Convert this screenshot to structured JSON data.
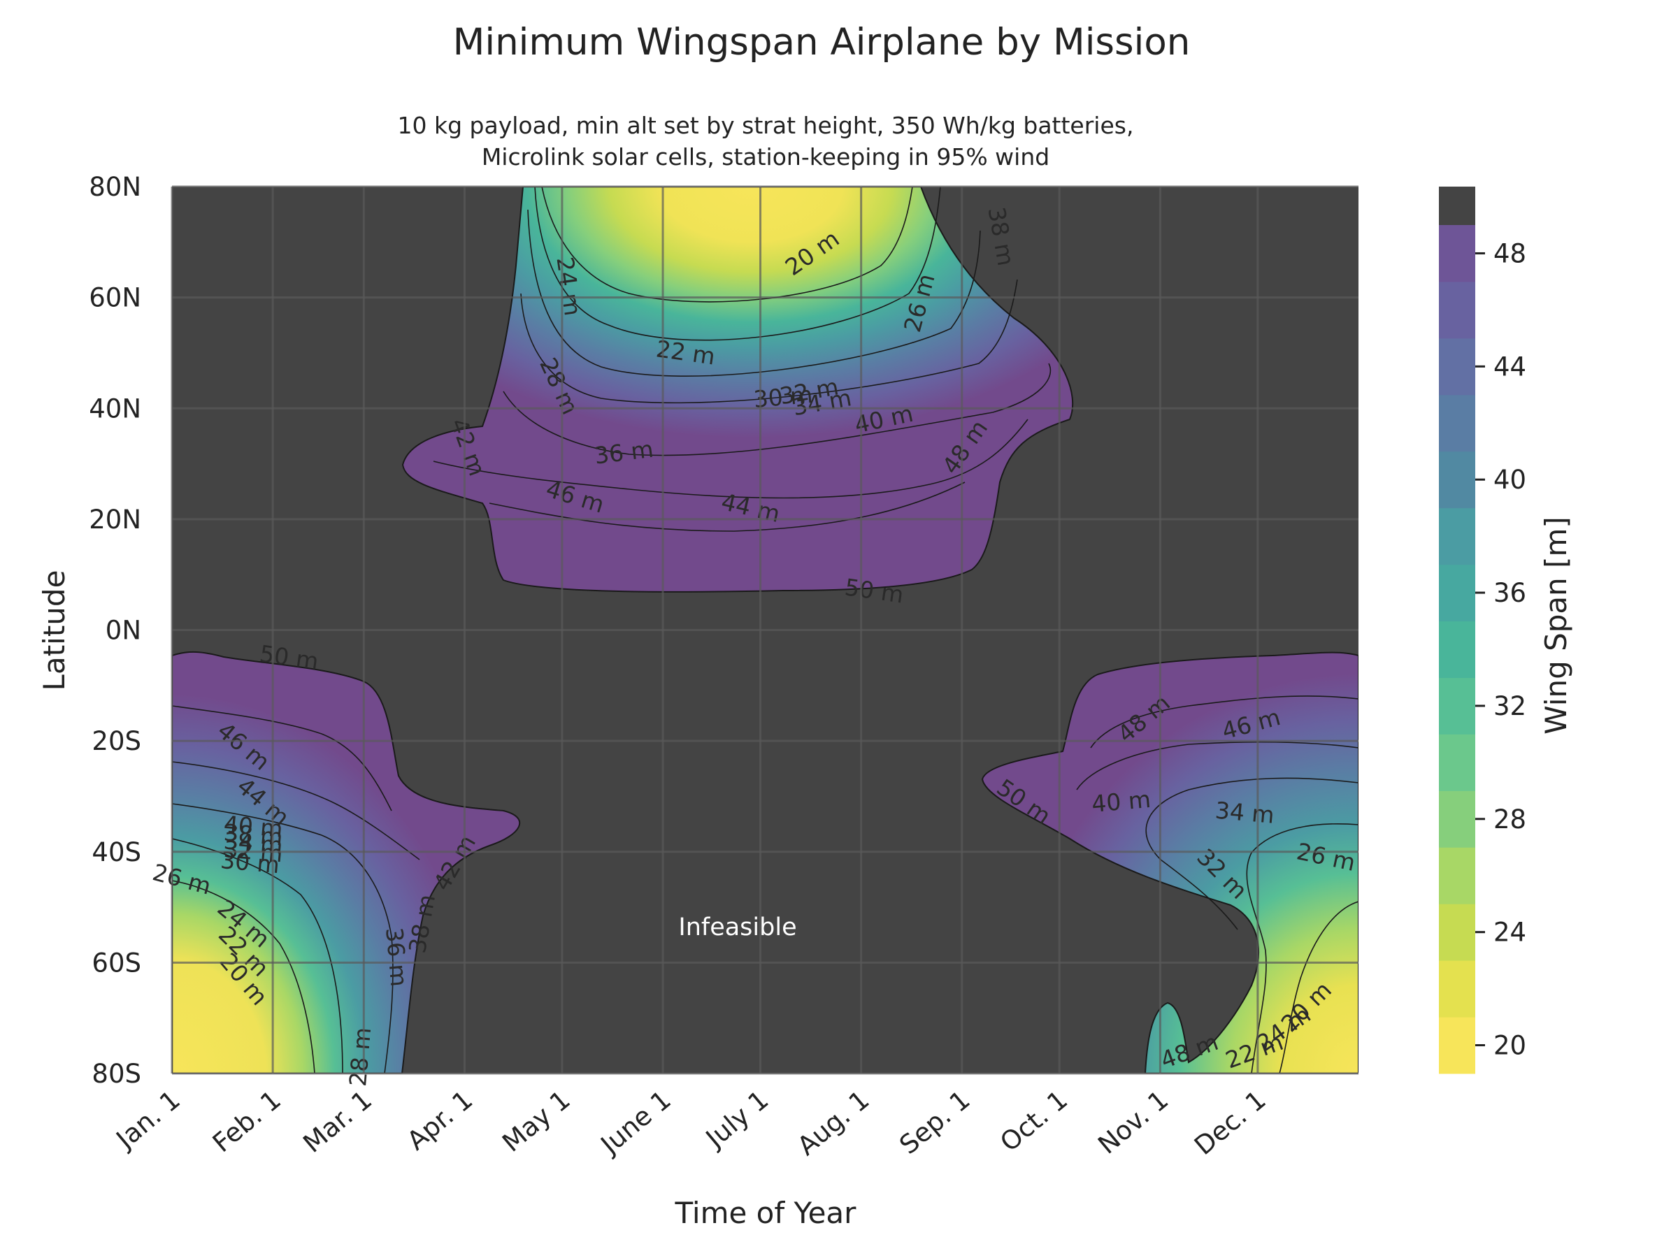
{
  "chart_data": {
    "type": "contour",
    "title": "Minimum Wingspan Airplane by Mission",
    "subtitle_lines": [
      "10 kg payload, min alt set by strat height, 350 Wh/kg batteries,",
      "Microlink solar cells, station-keeping in 95% wind"
    ],
    "xlabel": "Time of Year",
    "ylabel": "Latitude",
    "x_ticks": [
      "Jan. 1",
      "Feb. 1",
      "Mar. 1",
      "Apr. 1",
      "May 1",
      "June 1",
      "July 1",
      "Aug. 1",
      "Sep. 1",
      "Oct. 1",
      "Nov. 1",
      "Dec. 1"
    ],
    "x_tick_days": [
      0,
      31,
      59,
      90,
      120,
      151,
      181,
      212,
      243,
      273,
      304,
      334
    ],
    "xlim_days": [
      0,
      365
    ],
    "y_ticks": [
      "80N",
      "60N",
      "40N",
      "20N",
      "0N",
      "20S",
      "40S",
      "60S",
      "80S"
    ],
    "y_tick_values": [
      80,
      60,
      40,
      20,
      0,
      -20,
      -40,
      -60,
      -80
    ],
    "ylim": [
      -80,
      80
    ],
    "infeasible_label": "Infeasible",
    "infeasible_color": "#444444",
    "colorbar": {
      "label": "Wing Span [m]",
      "ticks": [
        "48",
        "44",
        "40",
        "36",
        "32",
        "28",
        "24",
        "20"
      ],
      "tick_values": [
        48,
        44,
        40,
        36,
        32,
        28,
        24,
        20
      ],
      "levels": [
        19,
        21,
        23,
        25,
        27,
        29,
        31,
        33,
        35,
        37,
        39,
        41,
        43,
        45,
        47,
        49
      ],
      "colors": [
        "#f7e55a",
        "#e4e14f",
        "#c6db52",
        "#a8d766",
        "#86cf7c",
        "#6bc88c",
        "#57bf95",
        "#49b59a",
        "#47a8a0",
        "#4b9ca3",
        "#5189a2",
        "#5a7da4",
        "#6270a4",
        "#6862a0",
        "#6e5597",
        "#724a8c"
      ],
      "over_color": "#444444"
    },
    "contour_labels": [
      {
        "text": "24 m",
        "day": 122,
        "lat": 62,
        "rot": 82
      },
      {
        "text": "20 m",
        "day": 197,
        "lat": 68,
        "rot": -35
      },
      {
        "text": "26 m",
        "day": 230,
        "lat": 59,
        "rot": -75
      },
      {
        "text": "38 m",
        "day": 255,
        "lat": 71,
        "rot": 80
      },
      {
        "text": "22 m",
        "day": 158,
        "lat": 50,
        "rot": 8
      },
      {
        "text": "28 m",
        "day": 119,
        "lat": 44,
        "rot": 65
      },
      {
        "text": "30 m",
        "day": 188,
        "lat": 42,
        "rot": -5
      },
      {
        "text": "32 m",
        "day": 196,
        "lat": 43,
        "rot": -10
      },
      {
        "text": "34 m",
        "day": 200,
        "lat": 41,
        "rot": -10
      },
      {
        "text": "40 m",
        "day": 219,
        "lat": 38,
        "rot": -12
      },
      {
        "text": "36 m",
        "day": 139,
        "lat": 32,
        "rot": -7
      },
      {
        "text": "42 m",
        "day": 91,
        "lat": 33,
        "rot": 70
      },
      {
        "text": "48 m",
        "day": 244,
        "lat": 33,
        "rot": -55
      },
      {
        "text": "46 m",
        "day": 124,
        "lat": 24,
        "rot": 17
      },
      {
        "text": "44 m",
        "day": 178,
        "lat": 22,
        "rot": 13
      },
      {
        "text": "50 m",
        "day": 216,
        "lat": 7,
        "rot": 8
      },
      {
        "text": "50 m",
        "day": 36,
        "lat": -5,
        "rot": 8
      },
      {
        "text": "46 m",
        "day": 22,
        "lat": -21,
        "rot": 40
      },
      {
        "text": "44 m",
        "day": 28,
        "lat": -31,
        "rot": 40
      },
      {
        "text": "40 m",
        "day": 25,
        "lat": -35.5,
        "rot": 5
      },
      {
        "text": "38 m",
        "day": 25,
        "lat": -37,
        "rot": 5
      },
      {
        "text": "34 m",
        "day": 25,
        "lat": -38.5,
        "rot": 5
      },
      {
        "text": "32 m",
        "day": 25,
        "lat": -40,
        "rot": 5
      },
      {
        "text": "30 m",
        "day": 24,
        "lat": -42,
        "rot": 5
      },
      {
        "text": "26 m",
        "day": 3,
        "lat": -45,
        "rot": 15
      },
      {
        "text": "42 m",
        "day": 87,
        "lat": -42,
        "rot": -60
      },
      {
        "text": "38 m",
        "day": 77,
        "lat": -53,
        "rot": -80
      },
      {
        "text": "36 m",
        "day": 69,
        "lat": -59,
        "rot": 85
      },
      {
        "text": "24 m",
        "day": 22,
        "lat": -53,
        "rot": 40
      },
      {
        "text": "22 m",
        "day": 22,
        "lat": -58,
        "rot": 45
      },
      {
        "text": "20 m",
        "day": 22,
        "lat": -63,
        "rot": 50
      },
      {
        "text": "28 m",
        "day": 58,
        "lat": -77,
        "rot": -85
      },
      {
        "text": "48 m",
        "day": 299,
        "lat": -16,
        "rot": -40
      },
      {
        "text": "46 m",
        "day": 332,
        "lat": -17,
        "rot": -15
      },
      {
        "text": "50 m",
        "day": 262,
        "lat": -31,
        "rot": 35
      },
      {
        "text": "40 m",
        "day": 292,
        "lat": -31,
        "rot": -5
      },
      {
        "text": "34 m",
        "day": 330,
        "lat": -33,
        "rot": 5
      },
      {
        "text": "32 m",
        "day": 323,
        "lat": -44,
        "rot": 45
      },
      {
        "text": "26 m",
        "day": 355,
        "lat": -41,
        "rot": 12
      },
      {
        "text": "48 m",
        "day": 313,
        "lat": -76,
        "rot": -20
      },
      {
        "text": "22 m",
        "day": 333,
        "lat": -76,
        "rot": -20
      },
      {
        "text": "24 m",
        "day": 342,
        "lat": -72,
        "rot": -35
      },
      {
        "text": "20 m",
        "day": 349,
        "lat": -68,
        "rot": -45
      }
    ]
  }
}
